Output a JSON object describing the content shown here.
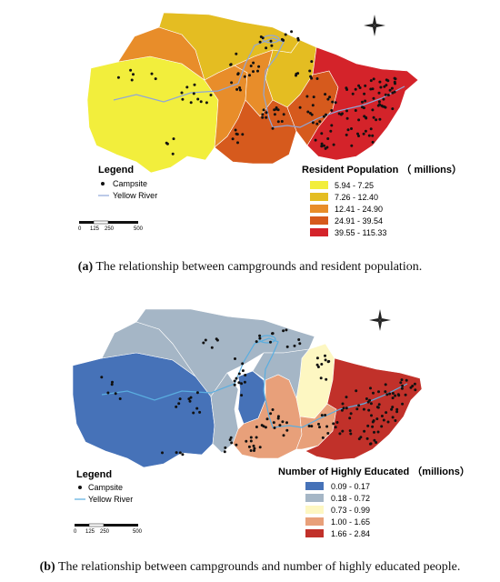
{
  "map_a": {
    "left_legend": {
      "title": "Legend",
      "campsite_label": "Campsite",
      "river_label": "Yellow River"
    },
    "scale": {
      "ticks": [
        "0",
        "125",
        "250",
        "500"
      ]
    },
    "class_legend": {
      "title": "Resident Population （ millions）",
      "classes": [
        {
          "label": "5.94 - 7.25",
          "color": "#f2ee3c"
        },
        {
          "label": "7.26 - 12.40",
          "color": "#e4bd22"
        },
        {
          "label": "12.41 - 24.90",
          "color": "#e88d2a"
        },
        {
          "label": "24.91 - 39.54",
          "color": "#d65a1d"
        },
        {
          "label": "39.55 - 115.33",
          "color": "#d4232a"
        }
      ]
    },
    "caption": {
      "letter": "(a)",
      "text": " The relationship between campgrounds and resident population."
    },
    "river_color": "#8fa6d8",
    "dot_color": "#111111"
  },
  "map_b": {
    "left_legend": {
      "title": "Legend",
      "campsite_label": "Campsite",
      "river_label": "Yellow River"
    },
    "scale": {
      "ticks": [
        "0",
        "125",
        "250",
        "500"
      ]
    },
    "class_legend": {
      "title": "Number of Highly Educated （millions）",
      "classes": [
        {
          "label": "0.09 - 0.17",
          "color": "#4672b8"
        },
        {
          "label": "0.18 - 0.72",
          "color": "#a5b6c6"
        },
        {
          "label": "0.73 - 0.99",
          "color": "#fdf7c2"
        },
        {
          "label": "1.00 - 1.65",
          "color": "#e8a07a"
        },
        {
          "label": "1.66 - 2.84",
          "color": "#c1312a"
        }
      ]
    },
    "caption": {
      "letter": "(b)",
      "text": " The relationship between campgrounds and number of highly educated people."
    },
    "river_color": "#5aaee0",
    "dot_color": "#111111"
  }
}
